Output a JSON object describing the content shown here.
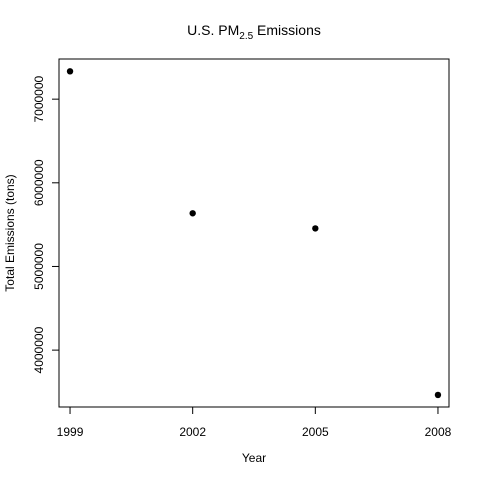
{
  "chart_data": {
    "type": "scatter",
    "title": {
      "prefix": "U.S.  PM",
      "subscript": "2.5",
      "suffix": "  Emissions"
    },
    "xlabel": "Year",
    "ylabel": "Total Emissions (tons)",
    "x_ticks": [
      "1999",
      "2002",
      "2005",
      "2008"
    ],
    "y_ticks": [
      "4000000",
      "5000000",
      "6000000",
      "7000000"
    ],
    "xlim": [
      1998.73,
      2008.27
    ],
    "ylim": [
      3320000,
      7480000
    ],
    "grid": false,
    "legend": "none",
    "points": [
      {
        "x": 1999,
        "y": 7332967
      },
      {
        "x": 2002,
        "y": 5635780
      },
      {
        "x": 2005,
        "y": 5454703
      },
      {
        "x": 2008,
        "y": 3464206
      }
    ],
    "point_color": "#000000"
  }
}
